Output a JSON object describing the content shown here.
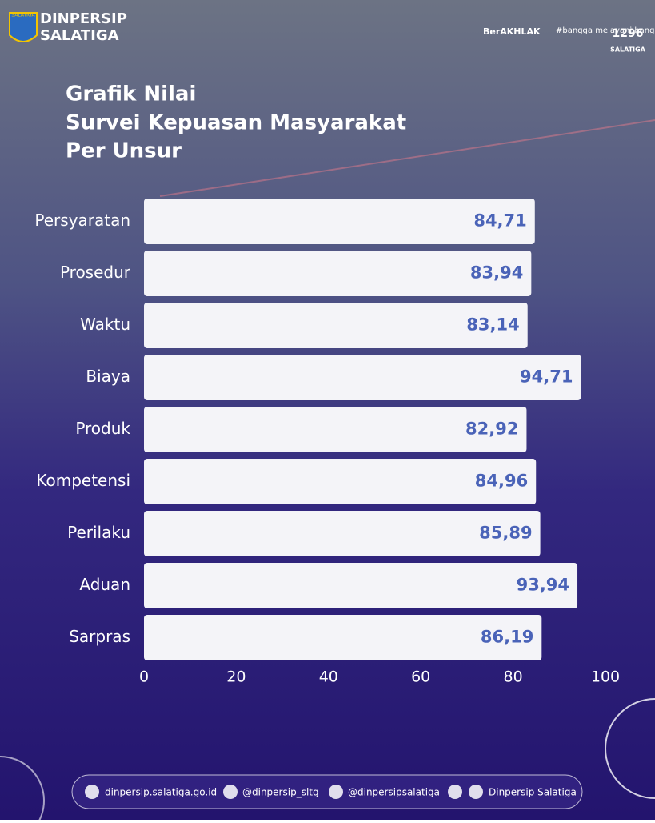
{
  "header": {
    "brand": [
      "DINPERSIP",
      "SALATIGA"
    ],
    "badge": "SALATIGA",
    "logos": [
      "BerAKHLAK",
      "#bangga melayani bangsa",
      "1296",
      "SALATIGA"
    ]
  },
  "chart_data": {
    "type": "bar",
    "orientation": "horizontal",
    "title": [
      "Grafik Nilai",
      "Survei Kepuasan Masyarakat",
      "Per Unsur"
    ],
    "categories": [
      "Persyaratan",
      "Prosedur",
      "Waktu",
      "Biaya",
      "Produk",
      "Kompetensi",
      "Perilaku",
      "Aduan",
      "Sarpras"
    ],
    "values": [
      84.71,
      83.94,
      83.14,
      94.71,
      82.92,
      84.96,
      85.89,
      93.94,
      86.19
    ],
    "value_labels": [
      "84,71",
      "83,94",
      "83,14",
      "94,71",
      "82,92",
      "84,96",
      "85,89",
      "93,94",
      "86,19"
    ],
    "color": "#f4f4f8",
    "label_color": "#4a63b8",
    "xlim": [
      0,
      100
    ],
    "xticks": [
      0,
      20,
      40,
      60,
      80,
      100
    ],
    "grid": false
  },
  "footer": {
    "items": [
      "dinpersip.salatiga.go.id",
      "@dinpersip_sltg",
      "@dinpersipsalatiga",
      "Dinpersip Salatiga"
    ]
  }
}
